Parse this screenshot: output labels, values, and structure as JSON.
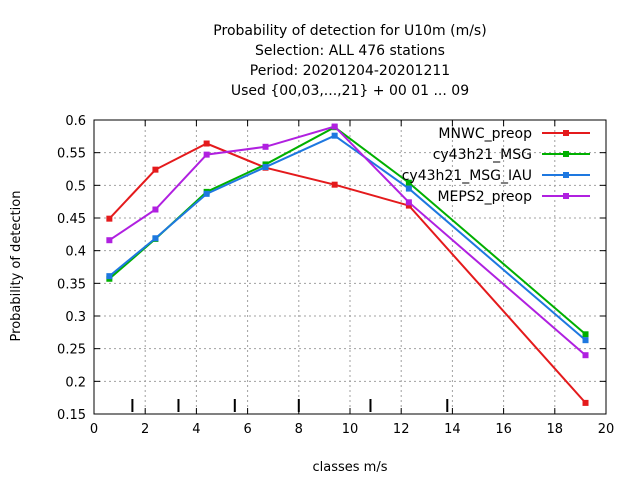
{
  "chart_data": {
    "type": "line",
    "title_lines": [
      "Probability of detection  for U10m (m/s)",
      "Selection: ALL    476 stations",
      "Period: 20201204-20201211",
      "Used {00,03,...,21} + 00 01 ... 09"
    ],
    "xlabel": "classes m/s",
    "ylabel": "Probability of detection",
    "xlim": [
      0,
      20
    ],
    "ylim": [
      0.15,
      0.6
    ],
    "xticks": [
      0,
      2,
      4,
      6,
      8,
      10,
      12,
      14,
      16,
      18,
      20
    ],
    "yticks": [
      0.15,
      0.2,
      0.25,
      0.3,
      0.35,
      0.4,
      0.45,
      0.5,
      0.55,
      0.6
    ],
    "xtick_labels": [
      "0",
      "2",
      "4",
      "6",
      "8",
      "10",
      "12",
      "14",
      "16",
      "18",
      "20"
    ],
    "ytick_labels": [
      "0.15",
      "0.2",
      "0.25",
      "0.3",
      "0.35",
      "0.4",
      "0.45",
      "0.5",
      "0.55",
      "0.6"
    ],
    "class_boundaries": [
      1.5,
      3.3,
      5.5,
      8.0,
      10.8,
      13.8
    ],
    "grid": true,
    "legend_position": "top-right",
    "series": [
      {
        "name": "MNWC_preop",
        "color": "#e41a1c",
        "x": [
          0.6,
          2.4,
          4.4,
          6.7,
          9.4,
          12.3,
          19.2
        ],
        "y": [
          0.449,
          0.524,
          0.564,
          0.527,
          0.501,
          0.469,
          0.167
        ]
      },
      {
        "name": "cy43h21_MSG",
        "color": "#00b000",
        "x": [
          0.6,
          2.4,
          4.4,
          6.7,
          9.4,
          12.3,
          19.2
        ],
        "y": [
          0.357,
          0.418,
          0.49,
          0.532,
          0.589,
          0.504,
          0.272
        ]
      },
      {
        "name": "cy43h21_MSG_IAU",
        "color": "#1e78e0",
        "x": [
          0.6,
          2.4,
          4.4,
          6.7,
          9.4,
          12.3,
          19.2
        ],
        "y": [
          0.361,
          0.419,
          0.487,
          0.528,
          0.576,
          0.495,
          0.263
        ]
      },
      {
        "name": "MEPS2_preop",
        "color": "#b020e0",
        "x": [
          0.6,
          2.4,
          4.4,
          6.7,
          9.4,
          12.3,
          19.2
        ],
        "y": [
          0.416,
          0.463,
          0.547,
          0.559,
          0.59,
          0.474,
          0.24
        ]
      }
    ]
  }
}
